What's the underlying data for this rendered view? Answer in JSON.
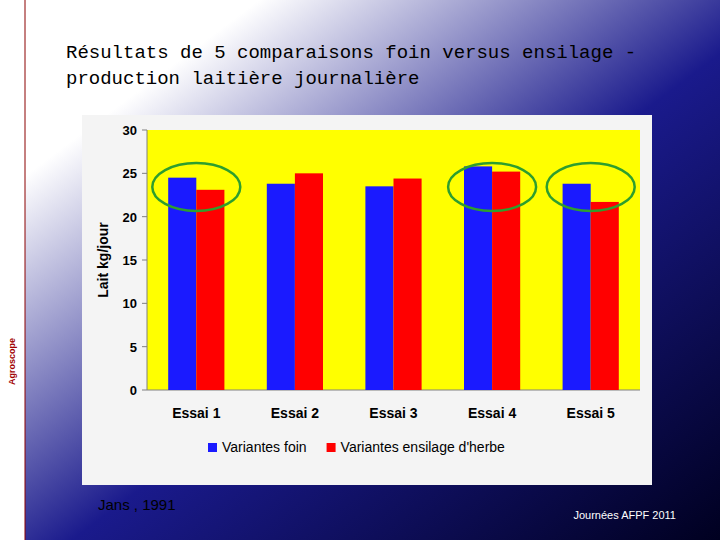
{
  "chart_data": {
    "type": "bar",
    "title": "Résultats de 5 comparaisons foin versus ensilage - production laitière journalière",
    "y_label": "Lait kg/jour",
    "categories": [
      "Essai 1",
      "Essai 2",
      "Essai 3",
      "Essai 4",
      "Essai 5"
    ],
    "series": [
      {
        "name": "Variantes foin",
        "color": "#1a1aff",
        "values": [
          24.5,
          23.8,
          23.5,
          25.8,
          23.8
        ]
      },
      {
        "name": "Variantes ensilage d'herbe",
        "color": "#ff0000",
        "values": [
          23.1,
          25.0,
          24.4,
          25.2,
          21.7
        ]
      }
    ],
    "ylim": [
      0,
      30
    ],
    "yticks": [
      0,
      5,
      10,
      15,
      20,
      25,
      30
    ],
    "grid": false,
    "legend": "bottom",
    "source": "Jans , 1991"
  },
  "slide": {
    "logo": "Agroscope",
    "footer": "Journées AFPF 2011"
  }
}
